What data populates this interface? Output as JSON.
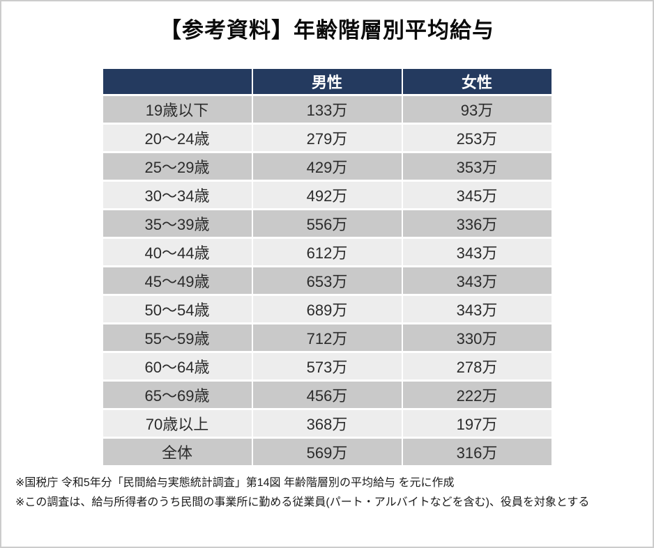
{
  "title": "【参考資料】年齢階層別平均給与",
  "colors": {
    "header-bg": "#243a5f",
    "row-dark": "#c9c9c9",
    "row-light": "#ededed",
    "cell-text": "#2b2b2b",
    "page-border": "#cccccc"
  },
  "table": {
    "header": {
      "age": "",
      "male": "男性",
      "female": "女性"
    },
    "rows": [
      {
        "age": "19歳以下",
        "male": "133万",
        "female": "93万"
      },
      {
        "age": "20〜24歳",
        "male": "279万",
        "female": "253万"
      },
      {
        "age": "25〜29歳",
        "male": "429万",
        "female": "353万"
      },
      {
        "age": "30〜34歳",
        "male": "492万",
        "female": "345万"
      },
      {
        "age": "35〜39歳",
        "male": "556万",
        "female": "336万"
      },
      {
        "age": "40〜44歳",
        "male": "612万",
        "female": "343万"
      },
      {
        "age": "45〜49歳",
        "male": "653万",
        "female": "343万"
      },
      {
        "age": "50〜54歳",
        "male": "689万",
        "female": "343万"
      },
      {
        "age": "55〜59歳",
        "male": "712万",
        "female": "330万"
      },
      {
        "age": "60〜64歳",
        "male": "573万",
        "female": "278万"
      },
      {
        "age": "65〜69歳",
        "male": "456万",
        "female": "222万"
      },
      {
        "age": "70歳以上",
        "male": "368万",
        "female": "197万"
      },
      {
        "age": "全体",
        "male": "569万",
        "female": "316万"
      }
    ]
  },
  "footnotes": [
    "※国税庁 令和5年分「民間給与実態統計調査」第14図 年齢階層別の平均給与 を元に作成",
    "※この調査は、給与所得者のうち民間の事業所に勤める従業員(パート・アルバイトなどを含む)、役員を対象とする"
  ],
  "chart_data": {
    "type": "table",
    "title": "【参考資料】年齢階層別平均給与",
    "categories": [
      "19歳以下",
      "20〜24歳",
      "25〜29歳",
      "30〜34歳",
      "35〜39歳",
      "40〜44歳",
      "45〜49歳",
      "50〜54歳",
      "55〜59歳",
      "60〜64歳",
      "65〜69歳",
      "70歳以上",
      "全体"
    ],
    "series": [
      {
        "name": "男性",
        "values": [
          133,
          279,
          429,
          492,
          556,
          612,
          653,
          689,
          712,
          573,
          456,
          368,
          569
        ]
      },
      {
        "name": "女性",
        "values": [
          93,
          253,
          353,
          345,
          336,
          343,
          343,
          343,
          330,
          278,
          222,
          197,
          316
        ]
      }
    ],
    "unit": "万円",
    "notes": [
      "※国税庁 令和5年分「民間給与実態統計調査」第14図 年齢階層別の平均給与 を元に作成",
      "※この調査は、給与所得者のうち民間の事業所に勤める従業員(パート・アルバイトなどを含む)、役員を対象とする"
    ]
  }
}
